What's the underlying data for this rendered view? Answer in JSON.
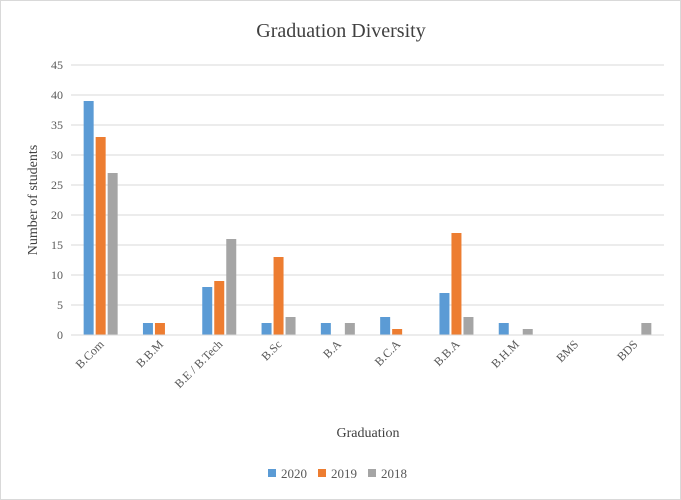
{
  "chart_data": {
    "type": "bar",
    "title": "Graduation Diversity",
    "xlabel": "Graduation",
    "ylabel": "Number of students",
    "ylim": [
      0,
      45
    ],
    "yticks": [
      0,
      5,
      10,
      15,
      20,
      25,
      30,
      35,
      40,
      45
    ],
    "grid": true,
    "legend_position": "bottom",
    "categories": [
      "B.Com",
      "B.B.M",
      "B.E / B.Tech",
      "B.Sc",
      "B.A",
      "B.C.A",
      "B.B.A",
      "B.H.M",
      "BMS",
      "BDS"
    ],
    "series": [
      {
        "name": "2020",
        "color": "#5b9bd5",
        "values": [
          39,
          2,
          8,
          2,
          2,
          3,
          7,
          2,
          0,
          0
        ]
      },
      {
        "name": "2019",
        "color": "#ed7d31",
        "values": [
          33,
          2,
          9,
          13,
          0,
          1,
          17,
          0,
          0,
          0
        ]
      },
      {
        "name": "2018",
        "color": "#a5a5a5",
        "values": [
          27,
          0,
          16,
          3,
          2,
          0,
          3,
          1,
          0,
          2
        ]
      }
    ]
  }
}
